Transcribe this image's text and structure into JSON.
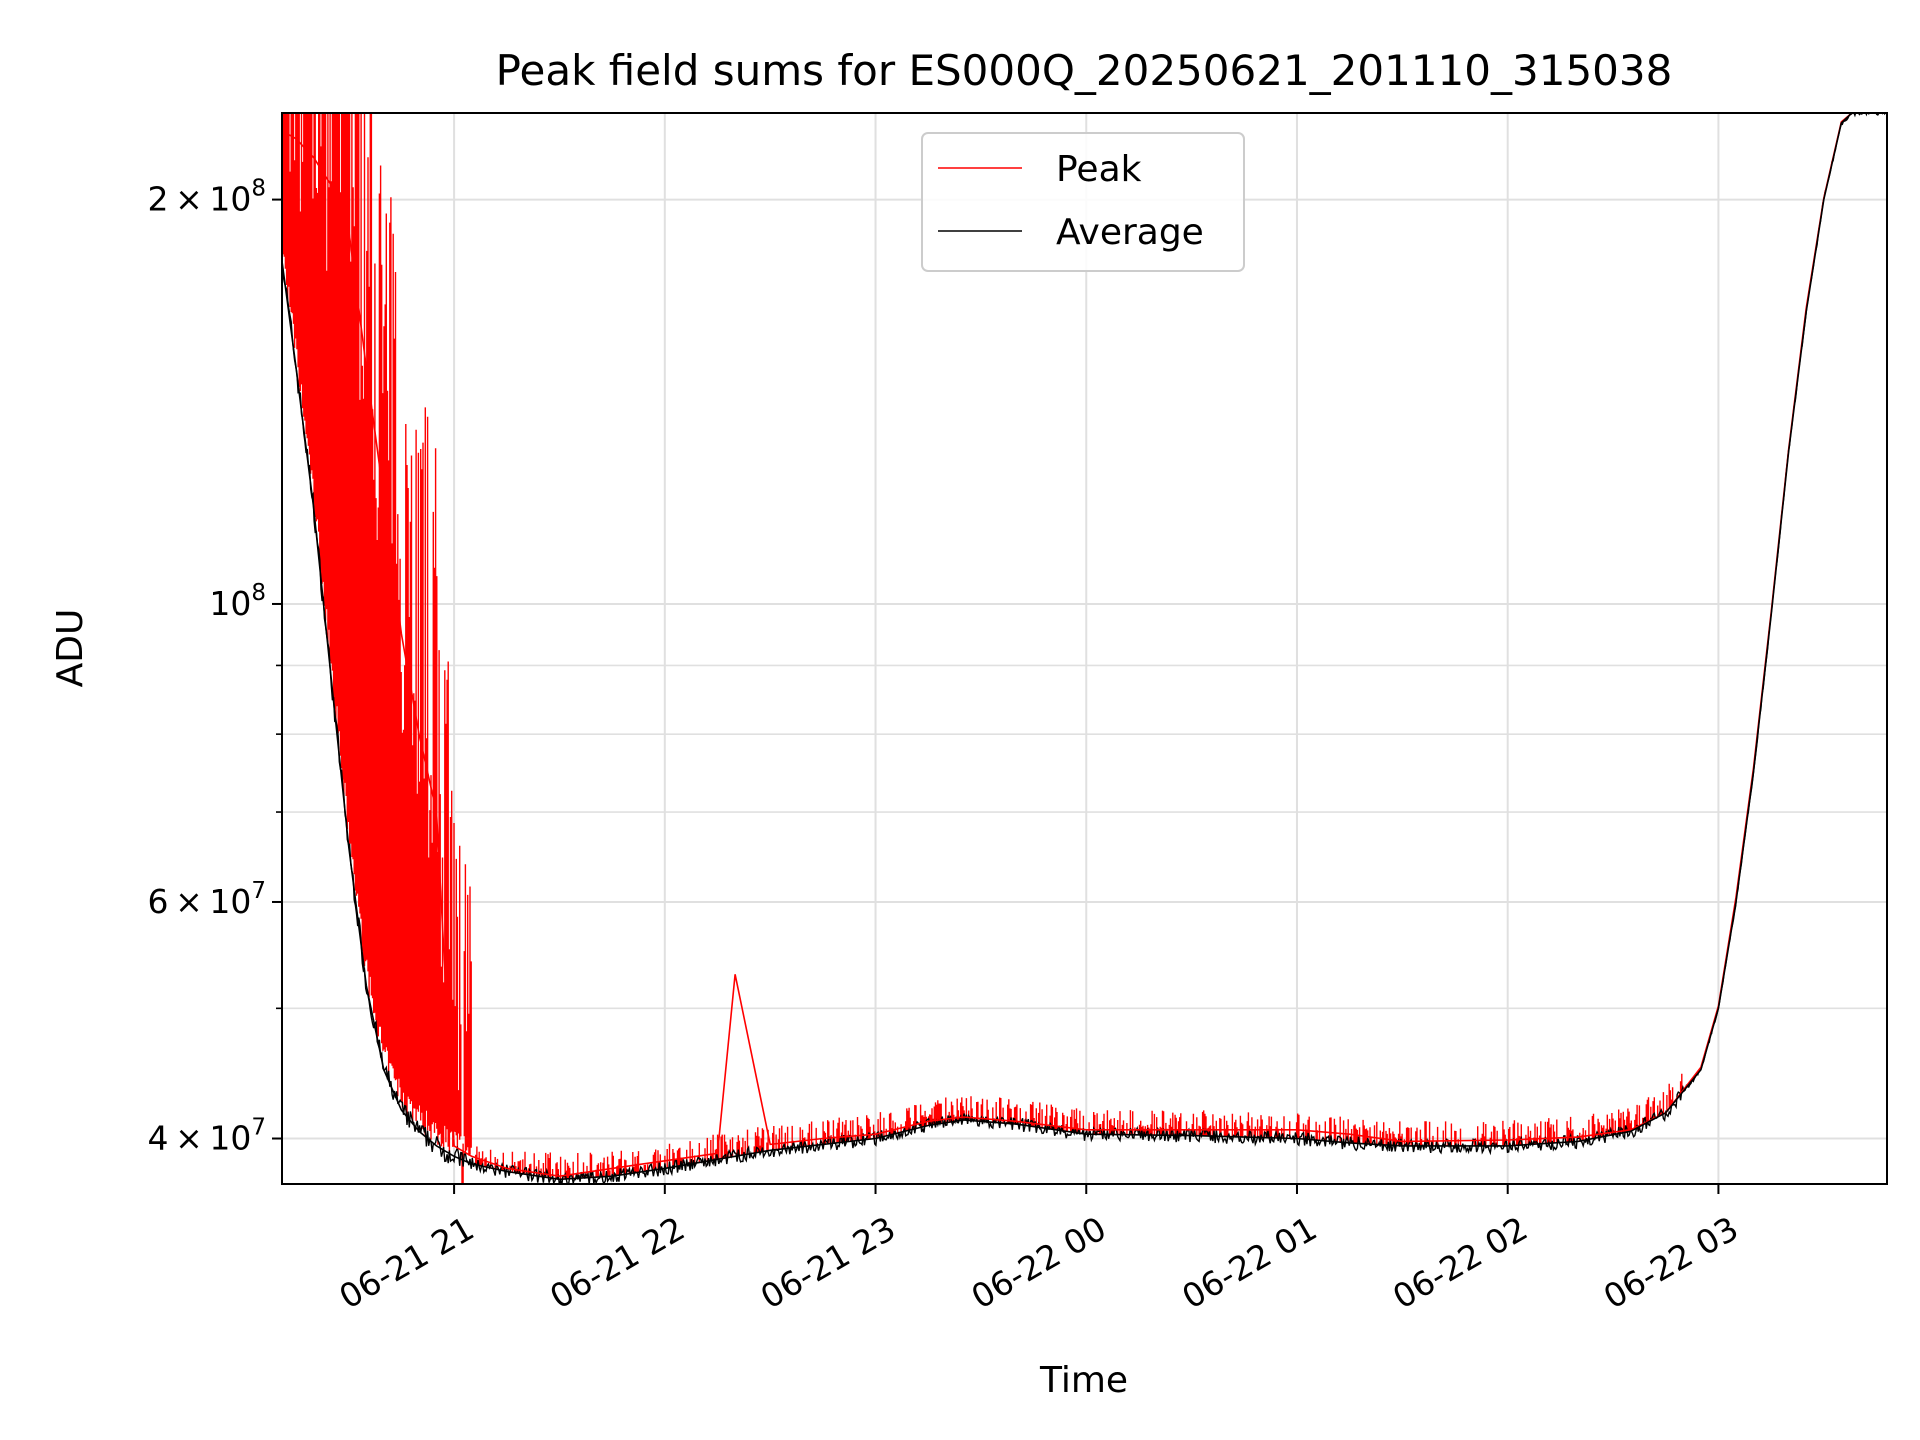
{
  "chart_data": {
    "type": "line",
    "title": "Peak field sums for ES000Q_20250621_201110_315038",
    "xlabel": "Time",
    "ylabel": "ADU",
    "yscale": "log",
    "ylim": [
      37000000,
      232000000
    ],
    "xlim": [
      "2025-06-21T20:11",
      "2025-06-22T03:48"
    ],
    "grid": true,
    "legend_position": "upper center",
    "x_ticks": [
      {
        "t": "2025-06-21T21:00",
        "label": "06-21 21"
      },
      {
        "t": "2025-06-21T22:00",
        "label": "06-21 22"
      },
      {
        "t": "2025-06-21T23:00",
        "label": "06-21 23"
      },
      {
        "t": "2025-06-22T00:00",
        "label": "06-22 00"
      },
      {
        "t": "2025-06-22T01:00",
        "label": "06-22 01"
      },
      {
        "t": "2025-06-22T02:00",
        "label": "06-22 02"
      },
      {
        "t": "2025-06-22T03:00",
        "label": "06-22 03"
      }
    ],
    "y_ticks": [
      {
        "v": 40000000,
        "mant": "4",
        "exp": "7"
      },
      {
        "v": 60000000,
        "mant": "6",
        "exp": "7"
      },
      {
        "v": 100000000,
        "mant": "",
        "exp": "8"
      },
      {
        "v": 200000000,
        "mant": "2",
        "exp": "8"
      }
    ],
    "y_minor_ticks": [
      50000000,
      70000000,
      80000000,
      90000000
    ],
    "series": [
      {
        "name": "Average",
        "color": "#000000",
        "x": [
          "2025-06-21T20:11",
          "2025-06-21T20:15",
          "2025-06-21T20:20",
          "2025-06-21T20:25",
          "2025-06-21T20:30",
          "2025-06-21T20:35",
          "2025-06-21T20:40",
          "2025-06-21T20:45",
          "2025-06-21T20:50",
          "2025-06-21T20:55",
          "2025-06-21T21:00",
          "2025-06-21T21:05",
          "2025-06-21T21:15",
          "2025-06-21T21:30",
          "2025-06-21T21:45",
          "2025-06-21T22:00",
          "2025-06-21T22:15",
          "2025-06-21T22:30",
          "2025-06-21T22:45",
          "2025-06-21T23:00",
          "2025-06-21T23:15",
          "2025-06-21T23:25",
          "2025-06-21T23:40",
          "2025-06-22T00:00",
          "2025-06-22T00:30",
          "2025-06-22T01:00",
          "2025-06-22T01:15",
          "2025-06-22T01:30",
          "2025-06-22T02:00",
          "2025-06-22T02:20",
          "2025-06-22T02:35",
          "2025-06-22T02:45",
          "2025-06-22T02:55",
          "2025-06-22T03:00",
          "2025-06-22T03:05",
          "2025-06-22T03:10",
          "2025-06-22T03:15",
          "2025-06-22T03:20",
          "2025-06-22T03:25",
          "2025-06-22T03:30",
          "2025-06-22T03:35",
          "2025-06-22T03:38"
        ],
        "values": [
          180000000,
          150000000,
          118000000,
          88000000,
          66000000,
          52000000,
          45000000,
          42000000,
          40500000,
          39500000,
          38800000,
          38300000,
          37800000,
          37300000,
          37500000,
          38000000,
          38600000,
          39200000,
          39600000,
          40000000,
          40900000,
          41300000,
          41000000,
          40300000,
          40200000,
          40000000,
          39700000,
          39500000,
          39500000,
          39800000,
          40500000,
          41800000,
          45000000,
          50000000,
          60000000,
          75000000,
          98000000,
          130000000,
          165000000,
          200000000,
          228000000,
          232000000
        ]
      },
      {
        "name": "Peak",
        "color": "#ff0000",
        "x": [
          "2025-06-21T20:11",
          "2025-06-21T20:15",
          "2025-06-21T20:20",
          "2025-06-21T20:25",
          "2025-06-21T20:30",
          "2025-06-21T20:35",
          "2025-06-21T20:40",
          "2025-06-21T20:45",
          "2025-06-21T20:50",
          "2025-06-21T20:55",
          "2025-06-21T21:00",
          "2025-06-21T21:05",
          "2025-06-21T21:15",
          "2025-06-21T21:30",
          "2025-06-21T21:45",
          "2025-06-21T22:00",
          "2025-06-21T22:15",
          "2025-06-21T22:20",
          "2025-06-21T22:30",
          "2025-06-21T22:45",
          "2025-06-21T23:00",
          "2025-06-21T23:15",
          "2025-06-21T23:25",
          "2025-06-21T23:40",
          "2025-06-22T00:00",
          "2025-06-22T00:30",
          "2025-06-22T01:00",
          "2025-06-22T01:15",
          "2025-06-22T01:30",
          "2025-06-22T02:00",
          "2025-06-22T02:20",
          "2025-06-22T02:35",
          "2025-06-22T02:45",
          "2025-06-22T02:55",
          "2025-06-22T03:00",
          "2025-06-22T03:05",
          "2025-06-22T03:10",
          "2025-06-22T03:15",
          "2025-06-22T03:20",
          "2025-06-22T03:25",
          "2025-06-22T03:30",
          "2025-06-22T03:35",
          "2025-06-22T03:38"
        ],
        "values": [
          225000000,
          222000000,
          215000000,
          205000000,
          190000000,
          150000000,
          120000000,
          95000000,
          80000000,
          70000000,
          39500000,
          38800000,
          38000000,
          37500000,
          38000000,
          38500000,
          39000000,
          53000000,
          39600000,
          40000000,
          40300000,
          41200000,
          41500000,
          41200000,
          40600000,
          40600000,
          40600000,
          40300000,
          39800000,
          39900000,
          40100000,
          40600000,
          41800000,
          45200000,
          50200000,
          60500000,
          75500000,
          98500000,
          130500000,
          166000000,
          200500000,
          228500000,
          232000000
        ]
      }
    ]
  }
}
